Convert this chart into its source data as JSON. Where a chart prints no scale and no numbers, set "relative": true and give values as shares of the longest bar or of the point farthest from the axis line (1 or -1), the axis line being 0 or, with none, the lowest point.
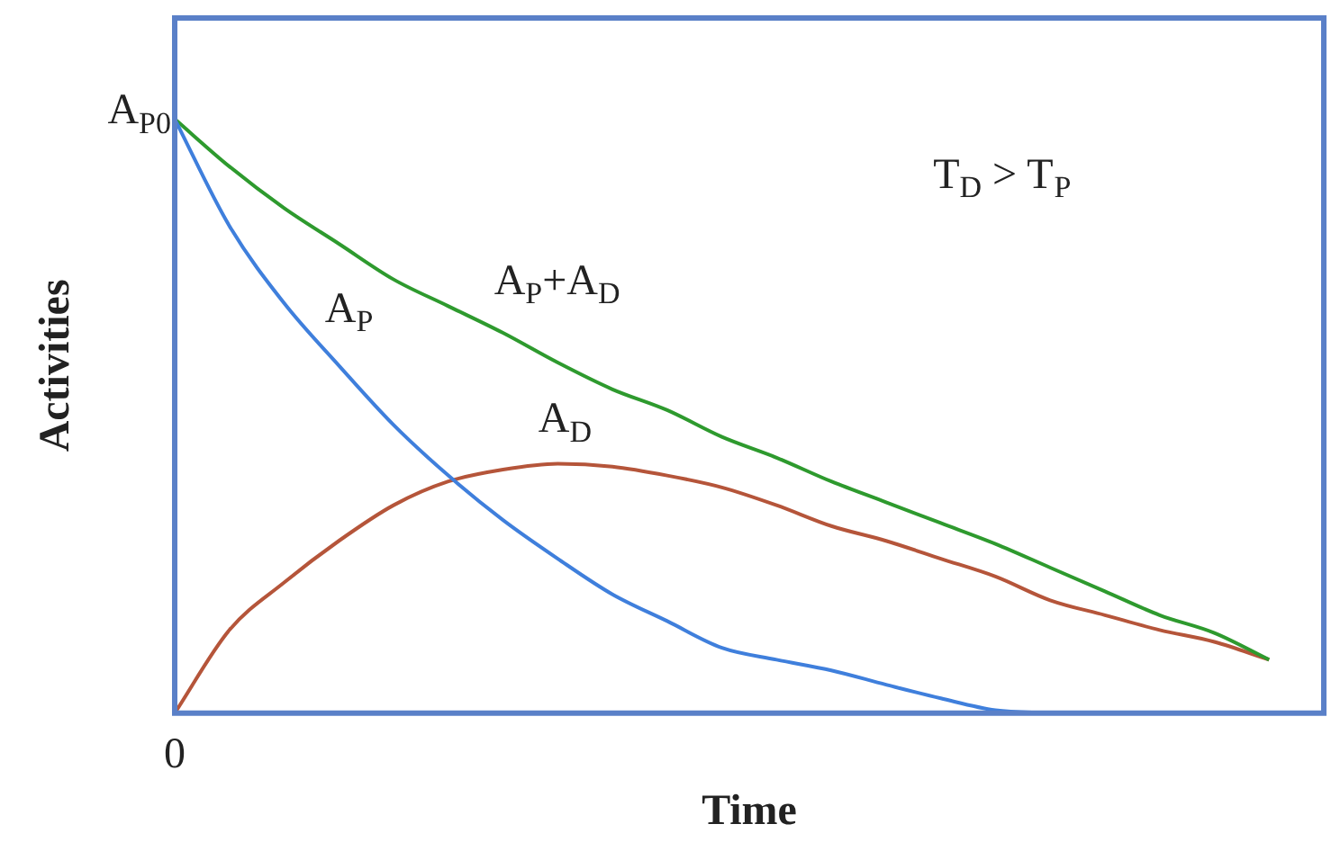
{
  "chart_data": {
    "type": "line",
    "relative": true,
    "xlabel": "Time",
    "ylabel": "Activities",
    "categories": [
      null,
      null,
      null,
      null,
      null,
      null,
      null,
      null,
      null,
      null,
      null,
      null,
      null,
      null,
      null,
      null,
      null,
      null,
      null,
      null,
      null,
      null
    ],
    "series": [
      {
        "name": "A$_{P}$",
        "color": "#3f7fdc",
        "values": [
          1.0,
          0.82,
          0.69,
          0.585,
          0.485,
          0.4,
          0.325,
          0.26,
          0.2,
          0.155,
          0.11,
          0.09,
          0.072,
          0.048,
          0.025,
          0.005,
          0,
          null,
          null,
          null,
          null,
          null
        ]
      },
      {
        "name": "A$_{P}$+A$_{D}$",
        "color": "#2e9a2e",
        "values": [
          1.0,
          0.92,
          0.85,
          0.79,
          0.73,
          0.685,
          0.64,
          0.59,
          0.545,
          0.51,
          0.465,
          0.43,
          0.39,
          0.355,
          0.32,
          0.285,
          0.245,
          0.205,
          0.165,
          0.135,
          0.09,
          null
        ]
      },
      {
        "name": "A$_{D}$",
        "color": "#b5553a",
        "values": [
          0,
          0.14,
          0.22,
          0.29,
          0.35,
          0.39,
          0.41,
          0.42,
          0.415,
          0.4,
          0.38,
          0.35,
          0.315,
          0.29,
          0.26,
          0.23,
          0.19,
          0.165,
          0.14,
          0.12,
          0.09,
          null
        ]
      }
    ],
    "annotations": [
      "A$_{P0}$",
      "0",
      "T$_{D}$ > T$_{P}$"
    ],
    "legend": false,
    "grid": false,
    "marker": "none",
    "line_style": "solid"
  }
}
